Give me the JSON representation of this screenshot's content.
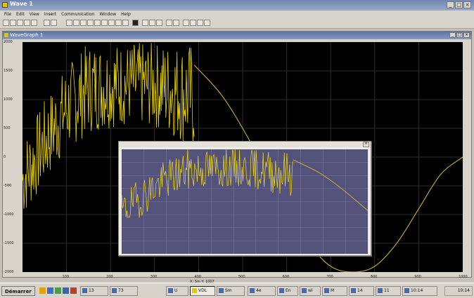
{
  "window": {
    "title": "Wave 1"
  },
  "menu": [
    "File",
    "Edit",
    "View",
    "Insert",
    "Communication",
    "Window",
    "Help"
  ],
  "child_window": {
    "title": "WaveGraph 1"
  },
  "chart": {
    "y_ticks": [
      "2000",
      "1500",
      "1000",
      "500",
      "0",
      "-500",
      "-1000",
      "-1500",
      "-2000"
    ],
    "x_ticks": [
      "100",
      "200",
      "300",
      "400",
      "500",
      "600",
      "700",
      "800",
      "900",
      "1000"
    ],
    "status_text": "X: Sm   Y: 1007"
  },
  "chart_data": {
    "type": "line",
    "series": [
      {
        "name": "",
        "description": "noisy signal x 0-390, then smooth sinusoid",
        "noisy_envelope": {
          "x": [
            0,
            50,
            100,
            150,
            200,
            250,
            300,
            350,
            390
          ],
          "lower": [
            -1100,
            -500,
            100,
            400,
            500,
            550,
            500,
            300,
            100
          ],
          "upper": [
            300,
            1000,
            1600,
            2000,
            2000,
            2000,
            2000,
            2000,
            2000
          ]
        },
        "smooth": {
          "x": [
            390,
            450,
            500,
            550,
            600,
            650,
            700,
            750,
            800,
            850,
            900,
            950,
            1000
          ],
          "y": [
            1600,
            1100,
            500,
            -200,
            -900,
            -1500,
            -1900,
            -2000,
            -1900,
            -1500,
            -900,
            -300,
            0
          ]
        }
      }
    ],
    "xlim": [
      0,
      1000
    ],
    "ylim": [
      -2000,
      2000
    ],
    "grid": true
  },
  "taskbar": {
    "start_label": "Démarrer",
    "tasks": [
      "",
      "13",
      "73",
      "U",
      "VDL",
      "Sm",
      "4e",
      "En",
      "wi",
      "M",
      "14",
      "11",
      "10:14"
    ],
    "clock": "10:14"
  }
}
